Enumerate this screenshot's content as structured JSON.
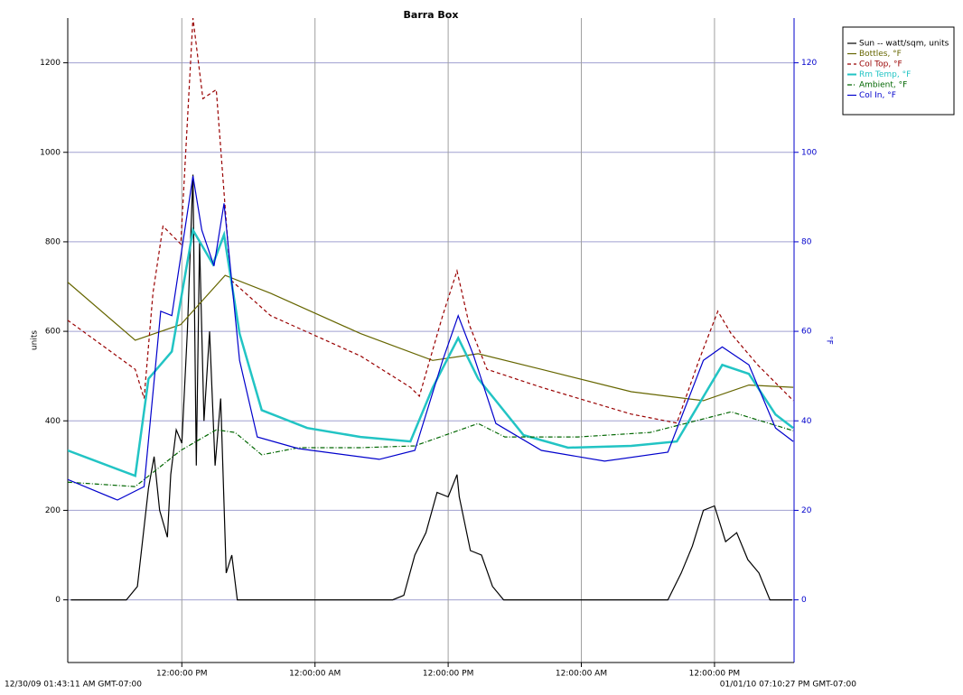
{
  "chart_data": {
    "type": "line",
    "title": "Barra Box",
    "ylabel": "units",
    "y2label": "°F",
    "start_label": "12/30/09 01:43:11 AM GMT-07:00",
    "end_label": "01/01/10 07:10:27 PM GMT-07:00",
    "xlim": [
      1.72,
      67.17
    ],
    "xticks": [
      {
        "value": 12,
        "label": "12:00:00 PM"
      },
      {
        "value": 24,
        "label": "12:00:00 AM"
      },
      {
        "value": 36,
        "label": "12:00:00 PM"
      },
      {
        "value": 48,
        "label": "12:00:00 AM"
      },
      {
        "value": 60,
        "label": "12:00:00 PM"
      }
    ],
    "ylim": [
      -140,
      1300
    ],
    "yticks": [
      0,
      200,
      400,
      600,
      800,
      1000,
      1200
    ],
    "y2lim": [
      -14,
      130
    ],
    "y2ticks": [
      0,
      20,
      40,
      60,
      80,
      100,
      120
    ],
    "grid": true,
    "legend": "upper right",
    "series": [
      {
        "name": "Sun -- watt/sqm, units",
        "color": "#000000",
        "dash": "solid",
        "width": 1.2,
        "x": [
          2,
          7,
          8,
          9,
          9.5,
          10,
          10.7,
          11,
          11.5,
          12,
          12.5,
          13,
          13.3,
          13.6,
          14,
          14.5,
          15,
          15.5,
          16,
          16.5,
          17,
          31,
          32,
          33,
          34,
          35,
          36,
          36.8,
          37,
          38,
          39,
          40,
          41,
          55.8,
          57,
          58,
          59,
          60,
          61,
          62,
          63,
          64,
          65,
          67
        ],
        "values": [
          0,
          0,
          30,
          250,
          320,
          200,
          140,
          280,
          380,
          350,
          600,
          950,
          300,
          800,
          400,
          600,
          300,
          450,
          60,
          100,
          0,
          0,
          10,
          100,
          150,
          240,
          230,
          280,
          230,
          110,
          100,
          30,
          0,
          0,
          60,
          120,
          200,
          210,
          130,
          150,
          90,
          60,
          0,
          0
        ]
      },
      {
        "name": "Bottles, °F",
        "color": "#666600",
        "dash": "solid",
        "width": 1.2,
        "axis": "y2",
        "x": [
          1.7,
          7.8,
          11.9,
          15.9,
          20.0,
          28.1,
          34.6,
          38.7,
          44.4,
          52.5,
          59.0,
          63.1,
          67.1
        ],
        "values": [
          71,
          58,
          61.5,
          72.5,
          68.5,
          59.5,
          53.5,
          55,
          51.5,
          46.5,
          44.5,
          48,
          47.5
        ]
      },
      {
        "name": "Col Top, °F",
        "color": "#990000",
        "dash": "4,3",
        "width": 1.2,
        "axis": "y2",
        "x": [
          1.7,
          7.8,
          8.6,
          9.4,
          10.3,
          11.9,
          13.0,
          13.9,
          15.1,
          16.4,
          20.0,
          28.1,
          32.6,
          33.4,
          35.5,
          36.8,
          37.9,
          39.5,
          44.4,
          52.5,
          56.6,
          58.6,
          60.3,
          61.5,
          63.9,
          67.1
        ],
        "values": [
          62.5,
          51.5,
          45,
          68.5,
          83.5,
          79.5,
          130,
          112,
          114,
          71.5,
          63.5,
          54.5,
          47.5,
          45.5,
          63.5,
          73.5,
          61.5,
          51.5,
          47.5,
          41.5,
          39.5,
          53.5,
          64.5,
          59.5,
          52.5,
          44.5
        ]
      },
      {
        "name": "Rm Temp, °F",
        "color": "#22c4c4",
        "dash": "solid",
        "width": 2.5,
        "axis": "y2",
        "x": [
          1.7,
          7.8,
          9.0,
          11.1,
          13.0,
          14.8,
          15.8,
          17.2,
          19.2,
          23.3,
          28.1,
          32.6,
          34.6,
          36.9,
          38.7,
          42.8,
          46.8,
          52.5,
          56.6,
          59.0,
          60.7,
          63.1,
          65.5,
          67.1
        ],
        "values": [
          33.4,
          27.7,
          49.4,
          55.5,
          82.6,
          75,
          81.6,
          59.5,
          42.4,
          38.4,
          36.4,
          35.4,
          47.4,
          58.5,
          49.4,
          36.8,
          34,
          34.4,
          35.4,
          45.4,
          52.5,
          50.5,
          41.4,
          38.4
        ]
      },
      {
        "name": "Ambient, °F",
        "color": "#006600",
        "dash": "5,2,1,2",
        "width": 1.2,
        "axis": "y2",
        "x": [
          1.7,
          7.8,
          11.9,
          15.1,
          16.8,
          19.2,
          22.5,
          28.1,
          33.0,
          38.7,
          41.1,
          47.7,
          54.2,
          61.5,
          67.1
        ],
        "values": [
          26.3,
          25.3,
          33.4,
          38,
          37.4,
          32.4,
          34,
          34,
          34.4,
          39.4,
          36.4,
          36.4,
          37.4,
          42,
          37.8
        ]
      },
      {
        "name": "Col In, °F",
        "color": "#0000cc",
        "dash": "solid",
        "width": 1.2,
        "axis": "y2",
        "x": [
          1.7,
          6.2,
          8.6,
          10.1,
          11.1,
          13.0,
          13.8,
          14.9,
          15.8,
          17.2,
          18.8,
          22.5,
          29.8,
          33.0,
          35.5,
          36.9,
          38.3,
          40.3,
          44.4,
          50.1,
          55.8,
          59.0,
          60.7,
          63.1,
          65.5,
          67.1
        ],
        "values": [
          26.9,
          22.3,
          25.3,
          64.5,
          63.5,
          94.7,
          82.6,
          74.6,
          88.6,
          53.5,
          36.4,
          33.8,
          31.4,
          33.4,
          53.5,
          63.5,
          54.5,
          39.4,
          33.4,
          31,
          33,
          53.5,
          56.5,
          52.5,
          38.4,
          35.4
        ]
      }
    ]
  }
}
